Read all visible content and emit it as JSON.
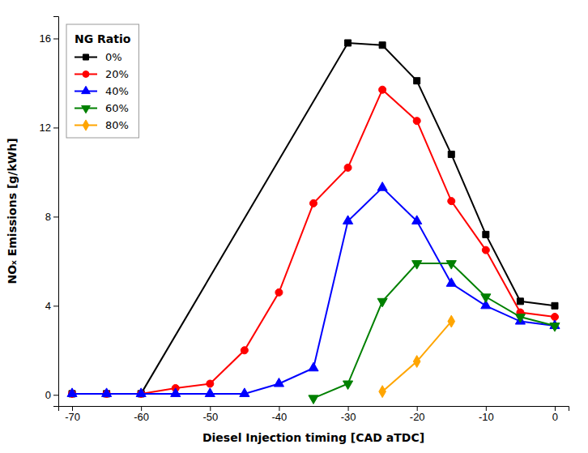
{
  "chart_data": {
    "type": "line",
    "xlabel": "Diesel Injection timing [CAD aTDC]",
    "ylabel": "NOₓ Emissions [g/kWh]",
    "legend_title": "NG Ratio",
    "legend": "upper left",
    "grid": false,
    "xlim": [
      -72,
      2
    ],
    "ylim": [
      -0.5,
      17
    ],
    "xticks": [
      -70,
      -60,
      -50,
      -40,
      -30,
      -20,
      -10,
      0
    ],
    "yticks": [
      0,
      4,
      8,
      12,
      16
    ],
    "series": [
      {
        "name": "0%",
        "color": "#000000",
        "marker": "square",
        "x": [
          -70,
          -65,
          -60,
          -30,
          -25,
          -20,
          -15,
          -10,
          -5,
          0
        ],
        "values": [
          0.05,
          0.05,
          0.05,
          15.8,
          15.7,
          14.1,
          10.8,
          7.2,
          4.2,
          4.0
        ]
      },
      {
        "name": "20%",
        "color": "#ff0000",
        "marker": "circle",
        "x": [
          -70,
          -65,
          -60,
          -55,
          -50,
          -45,
          -40,
          -35,
          -30,
          -25,
          -20,
          -15,
          -10,
          -5,
          0
        ],
        "values": [
          0.05,
          0.05,
          0.05,
          0.3,
          0.5,
          2.0,
          4.6,
          8.6,
          10.2,
          13.7,
          12.3,
          8.7,
          6.5,
          3.7,
          3.5
        ]
      },
      {
        "name": "40%",
        "color": "#0000ff",
        "marker": "triangle-up",
        "x": [
          -70,
          -65,
          -60,
          -55,
          -50,
          -45,
          -40,
          -35,
          -30,
          -25,
          -20,
          -15,
          -10,
          -5,
          0
        ],
        "values": [
          0.05,
          0.05,
          0.05,
          0.05,
          0.05,
          0.05,
          0.5,
          1.2,
          7.8,
          9.3,
          7.8,
          5.0,
          4.0,
          3.3,
          3.1
        ]
      },
      {
        "name": "60%",
        "color": "#008000",
        "marker": "triangle-down",
        "x": [
          -35,
          -30,
          -25,
          -20,
          -15,
          -10,
          -5,
          0
        ],
        "values": [
          -0.15,
          0.5,
          4.2,
          5.9,
          5.9,
          4.4,
          3.5,
          3.1
        ]
      },
      {
        "name": "80%",
        "color": "#ffa500",
        "marker": "diamond",
        "x": [
          -25,
          -20,
          -15
        ],
        "values": [
          0.15,
          1.5,
          3.3
        ]
      }
    ]
  }
}
